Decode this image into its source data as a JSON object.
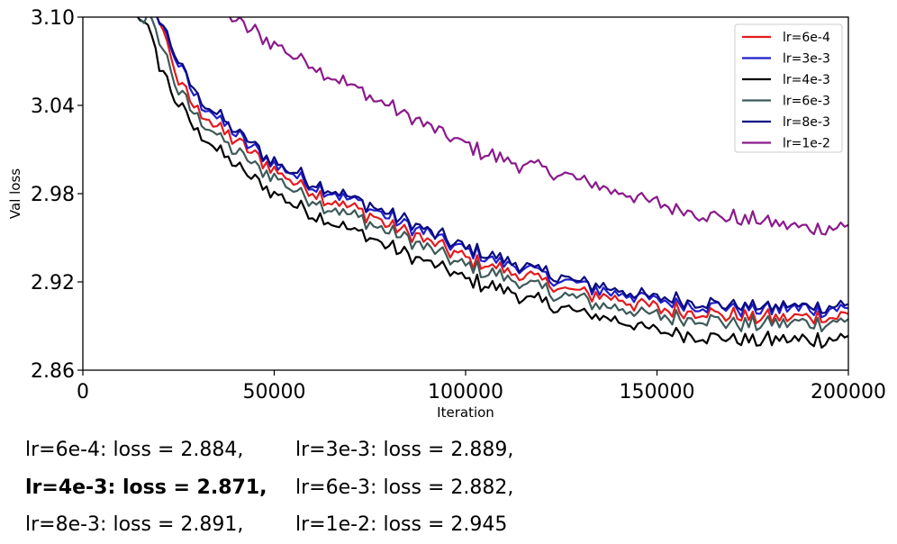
{
  "chart_data": {
    "type": "line",
    "title": "",
    "xlabel": "Iteration",
    "ylabel": "Val loss",
    "xlim": [
      0,
      200000
    ],
    "ylim": [
      2.86,
      3.1
    ],
    "x_ticks": [
      0,
      50000,
      100000,
      150000,
      200000
    ],
    "x_tick_labels": [
      "0",
      "50000",
      "100000",
      "150000",
      "200000"
    ],
    "y_ticks": [
      2.86,
      2.92,
      2.98,
      3.04,
      3.1
    ],
    "y_tick_labels": [
      "2.86",
      "2.92",
      "2.98",
      "3.04",
      "3.10"
    ],
    "grid": false,
    "legend_position": "top-right",
    "series": [
      {
        "name": "lr=6e-4",
        "color": "#e41a1c",
        "final": 2.897,
        "x": [
          20000,
          25000,
          30000,
          40000,
          50000,
          60000,
          75000,
          90000,
          100000,
          125000,
          150000,
          175000,
          200000
        ],
        "values": [
          3.1,
          3.055,
          3.037,
          3.015,
          2.996,
          2.981,
          2.965,
          2.948,
          2.936,
          2.916,
          2.902,
          2.896,
          2.897
        ]
      },
      {
        "name": "lr=3e-3",
        "color": "#1f1fcc",
        "final": 2.902,
        "x": [
          20000,
          25000,
          30000,
          40000,
          50000,
          60000,
          75000,
          90000,
          100000,
          125000,
          150000,
          175000,
          200000
        ],
        "values": [
          3.1,
          3.068,
          3.044,
          3.02,
          3.0,
          2.986,
          2.97,
          2.953,
          2.941,
          2.921,
          2.907,
          2.901,
          2.902
        ]
      },
      {
        "name": "lr=4e-3",
        "color": "#000000",
        "final": 2.882,
        "x": [
          16000,
          20000,
          25000,
          30000,
          40000,
          50000,
          60000,
          75000,
          90000,
          100000,
          125000,
          150000,
          175000,
          200000
        ],
        "values": [
          3.1,
          3.068,
          3.04,
          3.022,
          2.998,
          2.98,
          2.966,
          2.95,
          2.933,
          2.922,
          2.902,
          2.887,
          2.88,
          2.882
        ]
      },
      {
        "name": "lr=6e-3",
        "color": "#3d5a5a",
        "final": 2.893,
        "x": [
          17000,
          20000,
          25000,
          30000,
          40000,
          50000,
          60000,
          75000,
          90000,
          100000,
          125000,
          150000,
          175000,
          200000
        ],
        "values": [
          3.1,
          3.085,
          3.05,
          3.031,
          3.009,
          2.991,
          2.976,
          2.96,
          2.943,
          2.931,
          2.911,
          2.897,
          2.891,
          2.893
        ]
      },
      {
        "name": "lr=8e-3",
        "color": "#0a0a80",
        "final": 2.904,
        "x": [
          20000,
          25000,
          30000,
          40000,
          50000,
          60000,
          75000,
          90000,
          100000,
          125000,
          150000,
          175000,
          200000
        ],
        "values": [
          3.1,
          3.07,
          3.046,
          3.022,
          3.002,
          2.988,
          2.972,
          2.955,
          2.943,
          2.923,
          2.909,
          2.903,
          2.904
        ]
      },
      {
        "name": "lr=1e-2",
        "color": "#8b1a8b",
        "final": 2.957,
        "x": [
          38000,
          45000,
          55000,
          65000,
          75000,
          85000,
          100000,
          110000,
          125000,
          140000,
          150000,
          160000,
          175000,
          190000,
          200000
        ],
        "values": [
          3.1,
          3.09,
          3.074,
          3.061,
          3.046,
          3.033,
          3.013,
          3.003,
          2.993,
          2.981,
          2.974,
          2.967,
          2.962,
          2.957,
          2.957
        ]
      }
    ]
  },
  "summary": [
    {
      "text": "lr=6e-4: loss = 2.884,",
      "bold": false
    },
    {
      "text": "lr=3e-3: loss = 2.889,",
      "bold": false
    },
    {
      "text": "lr=4e-3: loss = 2.871,",
      "bold": true
    },
    {
      "text": "lr=6e-3: loss = 2.882,",
      "bold": false
    },
    {
      "text": "lr=8e-3: loss = 2.891,",
      "bold": false
    },
    {
      "text": "lr=1e-2: loss = 2.945",
      "bold": false
    }
  ]
}
